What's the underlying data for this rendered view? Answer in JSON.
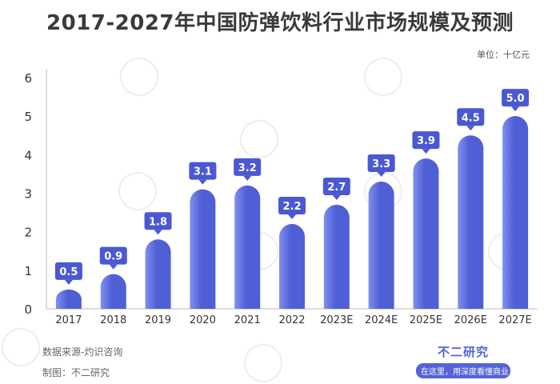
{
  "title": "2017-2027年中国防弹饮料行业市场规模及预测",
  "unit_label": "单位：十亿元",
  "footer": {
    "source": "数据来源-灼识咨询",
    "maker": "制图：不二研究",
    "brand_name": "不二研究",
    "brand_slogan": "在这里，用深度看懂商业"
  },
  "colors": {
    "bar": "#4f5fd6",
    "bar_light": "#8090ee",
    "label_bg": "#4a58d4",
    "axis_text": "#333333",
    "grid": "#dddddd"
  },
  "chart_data": {
    "type": "bar",
    "categories": [
      "2017",
      "2018",
      "2019",
      "2020",
      "2021",
      "2022",
      "2023E",
      "2024E",
      "2025E",
      "2026E",
      "2027E"
    ],
    "values": [
      0.5,
      0.9,
      1.8,
      3.1,
      3.2,
      2.2,
      2.7,
      3.3,
      3.9,
      4.5,
      5.0
    ],
    "value_labels": [
      "0.5",
      "0.9",
      "1.8",
      "3.1",
      "3.2",
      "2.2",
      "2.7",
      "3.3",
      "3.9",
      "4.5",
      "5.0"
    ],
    "yticks": [
      "0",
      "1",
      "2",
      "3",
      "4",
      "5",
      "6"
    ],
    "ylim": [
      0,
      6
    ],
    "title": "2017-2027年中国防弹饮料行业市场规模及预测",
    "xlabel": "",
    "ylabel": "",
    "grid": false,
    "legend": "none"
  }
}
